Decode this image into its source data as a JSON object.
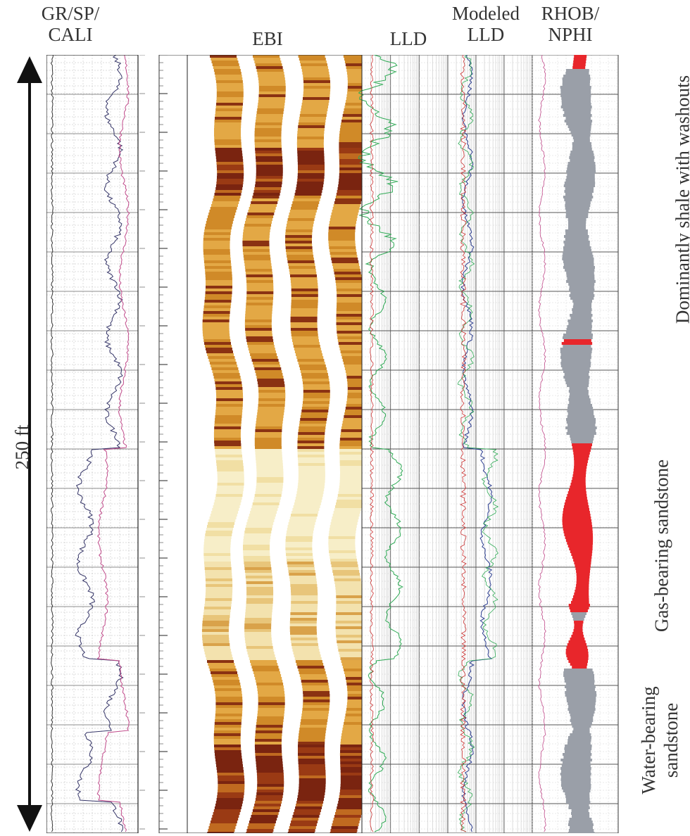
{
  "headers": {
    "track1_line1": "GR/SP/",
    "track1_line2": "CALI",
    "track_ebi": "EBI",
    "track_lld": "LLD",
    "track_model_line1": "Modeled",
    "track_model_line2": "LLD",
    "track_rhob_line1": "RHOB/",
    "track_rhob_line2": "NPHI"
  },
  "scale_label": "250 ft",
  "intervals": [
    {
      "label": "Dominantly shale with washouts"
    },
    {
      "label": "Gas-bearing sandstone"
    },
    {
      "label_line1": "Water-bearing",
      "label_line2": "sandstone"
    }
  ],
  "colors": {
    "gas_fill": "#e8262b",
    "shale_fill": "#9a9fa8",
    "gr_curve": "#333366",
    "sp_curve": "#c04a8a",
    "lld_curve": "#2faa55",
    "model_curve": "#cc3333",
    "ebi_dark": "#7a2410",
    "ebi_mid": "#d08a28",
    "ebi_light": "#f7e9b8",
    "grid": "#555555"
  },
  "icons": [
    "arrow-up-icon",
    "arrow-down-icon"
  ]
}
